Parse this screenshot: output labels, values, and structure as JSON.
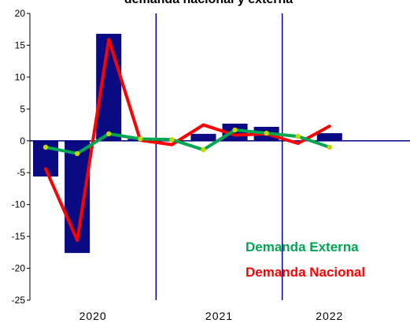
{
  "chart_data": {
    "type": "bar+line",
    "title": "demanda nacional y externa",
    "xlabel": "",
    "ylabel": "",
    "ylim": [
      -25,
      20
    ],
    "yticks": [
      20,
      15,
      10,
      5,
      0,
      -5,
      -10,
      -15,
      -20,
      -25
    ],
    "year_labels": [
      "2020",
      "2021",
      "2022"
    ],
    "bars": {
      "color": "#0a0a82",
      "values": [
        -5.6,
        -17.6,
        16.8,
        0.3,
        0.0,
        1.1,
        2.7,
        2.2,
        0.0,
        1.2
      ]
    },
    "series": [
      {
        "name": "Demanda Nacional",
        "color": "#ff0000",
        "values": [
          -4.4,
          -15.6,
          15.9,
          0.1,
          -0.6,
          2.5,
          0.9,
          1.1,
          -0.4,
          2.3
        ]
      },
      {
        "name": "Demanda Externa",
        "color": "#00a651",
        "values": [
          -1.0,
          -2.0,
          1.1,
          0.3,
          0.2,
          -1.4,
          1.7,
          1.2,
          0.7,
          -1.0
        ]
      }
    ],
    "legend": {
      "placement": "bottom-right",
      "externa": "Demanda Externa",
      "nacional": "Demanda Nacional"
    },
    "colors": {
      "marker": "#c8d400",
      "axis": "#000080"
    }
  }
}
